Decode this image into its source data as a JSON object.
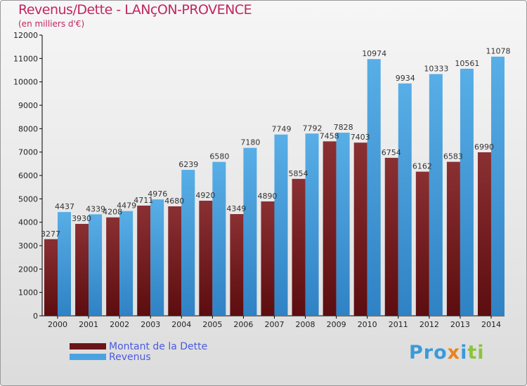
{
  "chart_data": {
    "type": "bar",
    "title": "Revenus/Dette - LANçON-PROVENCE",
    "subtitle": "(en milliers d'€)",
    "categories": [
      "2000",
      "2001",
      "2002",
      "2003",
      "2004",
      "2005",
      "2006",
      "2007",
      "2008",
      "2009",
      "2010",
      "2011",
      "2012",
      "2013",
      "2014"
    ],
    "series": [
      {
        "name": "Montant de la Dette",
        "color": "#7a1f22",
        "values": [
          3277,
          3930,
          4208,
          4711,
          4680,
          4920,
          4349,
          4890,
          5854,
          7458,
          7403,
          6754,
          6162,
          6583,
          6990
        ]
      },
      {
        "name": "Revenus",
        "color": "#4aa3e0",
        "values": [
          4437,
          4339,
          4479,
          4976,
          6239,
          6580,
          7180,
          7749,
          7792,
          7828,
          10974,
          9934,
          10333,
          10561,
          11078
        ]
      }
    ],
    "ylim": [
      0,
      12000
    ],
    "yticks": [
      0,
      1000,
      2000,
      3000,
      4000,
      5000,
      6000,
      7000,
      8000,
      9000,
      10000,
      11000,
      12000
    ],
    "legend_position": "bottom-left",
    "grid": false
  },
  "logo": "Proxiti"
}
